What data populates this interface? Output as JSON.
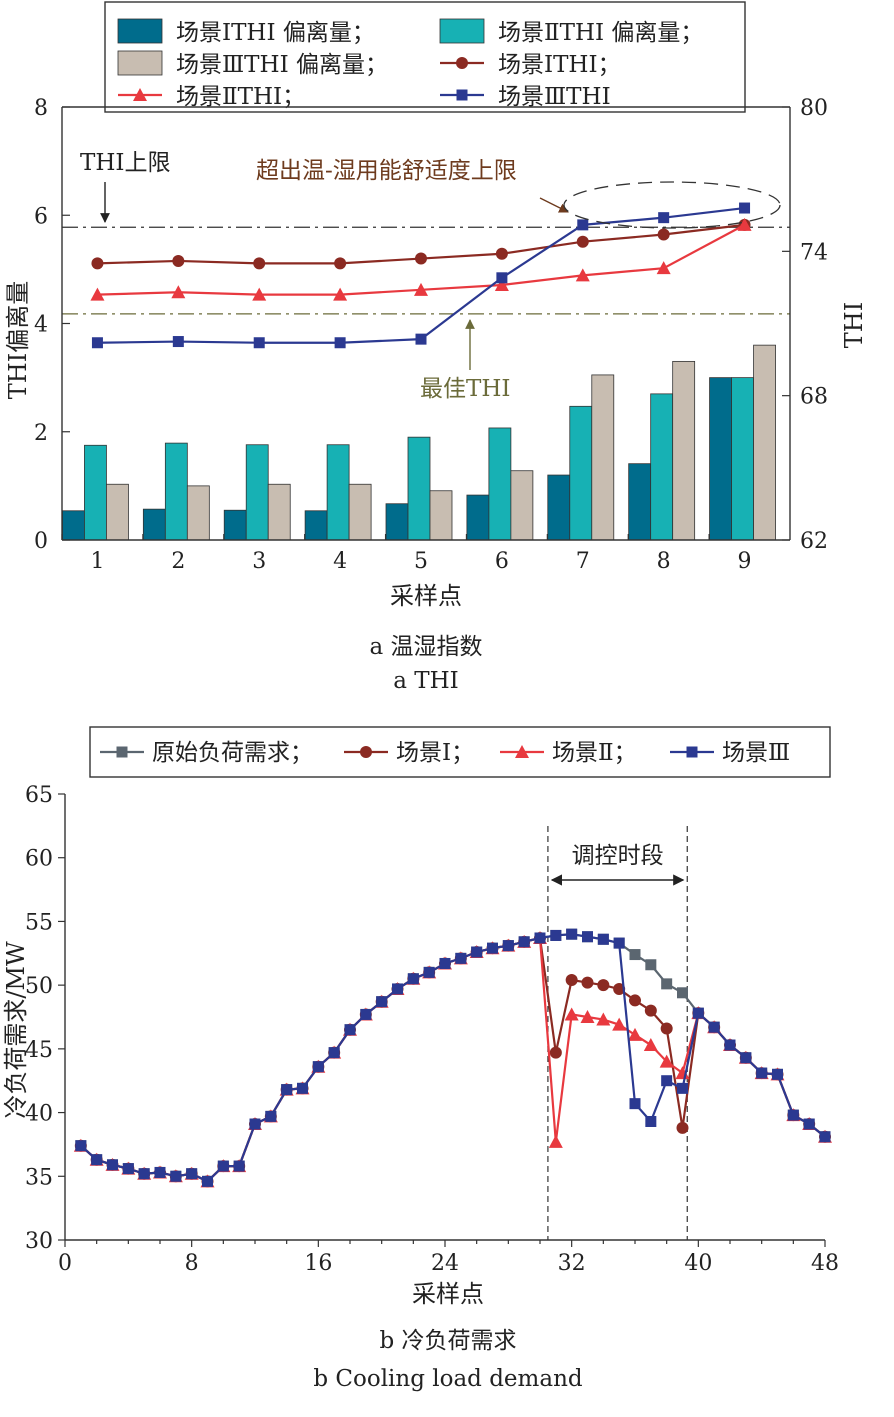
{
  "colors": {
    "scen1_dev": "#006c8c",
    "scen2_dev": "#17b1b4",
    "scen3_dev": "#c8bdb1",
    "scen1_line": "#8b2a22",
    "scen2_line": "#e8393f",
    "scen3_line": "#2b3991",
    "original_line": "#5b6670",
    "limit_line": "#333333",
    "best_line": "#6b6b3a",
    "best_label": "#6b6b3a",
    "exceed_label": "#6e3b1e"
  },
  "chart_data": [
    {
      "type": "bar+line",
      "categories": [
        "1",
        "2",
        "3",
        "4",
        "5",
        "6",
        "7",
        "8",
        "9"
      ],
      "ylabel": "THI偏离量",
      "y2label": "THI",
      "xlabel": "采样点",
      "ylim": [
        0,
        8
      ],
      "yticks": [
        "0",
        "2",
        "4",
        "6",
        "8"
      ],
      "y2lim": [
        62,
        80
      ],
      "y2ticks": [
        "62",
        "68",
        "74",
        "80"
      ],
      "legend": [
        {
          "label": "场景ⅠTHI 偏离量；",
          "kind": "bar",
          "color_key": "scen1_dev"
        },
        {
          "label": "场景ⅡTHI 偏离量；",
          "kind": "bar",
          "color_key": "scen2_dev"
        },
        {
          "label": "场景ⅢTHI 偏离量；",
          "kind": "bar",
          "color_key": "scen3_dev"
        },
        {
          "label": "场景ⅠTHI；",
          "kind": "line-circle",
          "color_key": "scen1_line"
        },
        {
          "label": "场景ⅡTHI；",
          "kind": "line-triangle",
          "color_key": "scen2_line"
        },
        {
          "label": "场景ⅢTHI",
          "kind": "line-square",
          "color_key": "scen3_line"
        }
      ],
      "bar_series": [
        {
          "name": "场景ⅠTHI 偏离量",
          "color_key": "scen1_dev",
          "values": [
            0.54,
            0.57,
            0.55,
            0.54,
            0.67,
            0.83,
            1.2,
            1.41,
            3.0
          ]
        },
        {
          "name": "场景ⅡTHI 偏离量",
          "color_key": "scen2_dev",
          "values": [
            1.75,
            1.79,
            1.76,
            1.76,
            1.9,
            2.07,
            2.47,
            2.7,
            3.0
          ]
        },
        {
          "name": "场景ⅢTHI 偏离量",
          "color_key": "scen3_dev",
          "values": [
            1.03,
            1.0,
            1.03,
            1.03,
            0.91,
            1.28,
            3.05,
            3.3,
            3.6
          ]
        }
      ],
      "line_series": [
        {
          "name": "场景ⅠTHI",
          "color_key": "scen1_line",
          "marker": "circle",
          "values": [
            73.5,
            73.6,
            73.5,
            73.5,
            73.7,
            73.9,
            74.4,
            74.7,
            75.1
          ]
        },
        {
          "name": "场景ⅡTHI",
          "color_key": "scen2_line",
          "marker": "triangle",
          "values": [
            72.2,
            72.3,
            72.2,
            72.2,
            72.4,
            72.6,
            73.0,
            73.3,
            75.1
          ]
        },
        {
          "name": "场景ⅢTHI",
          "color_key": "scen3_line",
          "marker": "square",
          "values": [
            70.2,
            70.25,
            70.2,
            70.2,
            70.35,
            72.9,
            75.1,
            75.4,
            75.8
          ]
        }
      ],
      "reference_lines": [
        {
          "label": "THI上限",
          "value": 75.0,
          "color_key": "limit_line"
        },
        {
          "label": "最佳THI",
          "value": 71.4,
          "color_key": "best_line"
        }
      ],
      "annotation": "超出温-湿用能舒适度上限",
      "caption_cn": "a  温湿指数",
      "caption_en": "a  THI"
    },
    {
      "type": "line",
      "x": [
        1,
        2,
        3,
        4,
        5,
        6,
        7,
        8,
        9,
        10,
        11,
        12,
        13,
        14,
        15,
        16,
        17,
        18,
        19,
        20,
        21,
        22,
        23,
        24,
        25,
        26,
        27,
        28,
        29,
        30,
        31,
        32,
        33,
        34,
        35,
        36,
        37,
        38,
        39,
        40,
        41,
        42,
        43,
        44,
        45,
        46,
        47,
        48
      ],
      "xlabel": "采样点",
      "ylabel": "冷负荷需求/MW",
      "xlim": [
        0,
        48
      ],
      "xticks": [
        "0",
        "8",
        "16",
        "24",
        "32",
        "40",
        "48"
      ],
      "ylim": [
        30,
        65
      ],
      "yticks": [
        "30",
        "35",
        "40",
        "45",
        "50",
        "55",
        "60",
        "65"
      ],
      "legend": [
        {
          "label": "原始负荷需求；",
          "kind": "line-square",
          "color_key": "original_line"
        },
        {
          "label": "场景Ⅰ；",
          "kind": "line-circle",
          "color_key": "scen1_line"
        },
        {
          "label": "场景Ⅱ；",
          "kind": "line-triangle",
          "color_key": "scen2_line"
        },
        {
          "label": "场景Ⅲ",
          "kind": "line-square",
          "color_key": "scen3_line"
        }
      ],
      "series": [
        {
          "name": "原始负荷需求",
          "color_key": "original_line",
          "marker": "square",
          "values": [
            37.4,
            36.3,
            35.9,
            35.6,
            35.2,
            35.3,
            35.0,
            35.2,
            34.6,
            35.8,
            35.8,
            39.1,
            39.7,
            41.8,
            41.9,
            43.6,
            44.7,
            46.5,
            47.7,
            48.7,
            49.7,
            50.5,
            51.0,
            51.7,
            52.1,
            52.6,
            52.9,
            53.1,
            53.4,
            53.7,
            53.9,
            54.0,
            53.8,
            53.6,
            53.3,
            52.4,
            51.6,
            50.1,
            49.4,
            47.8,
            46.7,
            45.3,
            44.3,
            43.1,
            43.0,
            39.8,
            39.1,
            38.1
          ]
        },
        {
          "name": "场景Ⅰ",
          "color_key": "scen1_line",
          "marker": "circle",
          "values": [
            37.4,
            36.3,
            35.9,
            35.6,
            35.2,
            35.3,
            35.0,
            35.2,
            34.6,
            35.8,
            35.8,
            39.1,
            39.7,
            41.8,
            41.9,
            43.6,
            44.7,
            46.5,
            47.7,
            48.7,
            49.7,
            50.5,
            51.0,
            51.7,
            52.1,
            52.6,
            52.9,
            53.1,
            53.4,
            53.7,
            44.7,
            50.4,
            50.2,
            50.0,
            49.7,
            48.8,
            48.0,
            46.6,
            38.8,
            47.8,
            46.7,
            45.3,
            44.3,
            43.1,
            43.0,
            39.8,
            39.1,
            38.1
          ]
        },
        {
          "name": "场景Ⅱ",
          "color_key": "scen2_line",
          "marker": "triangle",
          "values": [
            37.4,
            36.3,
            35.9,
            35.6,
            35.2,
            35.3,
            35.0,
            35.2,
            34.6,
            35.8,
            35.8,
            39.1,
            39.7,
            41.8,
            41.9,
            43.6,
            44.7,
            46.5,
            47.7,
            48.7,
            49.7,
            50.5,
            51.0,
            51.7,
            52.1,
            52.6,
            52.9,
            53.1,
            53.4,
            53.7,
            37.7,
            47.7,
            47.5,
            47.3,
            46.9,
            46.1,
            45.3,
            44.0,
            43.1,
            47.8,
            46.7,
            45.3,
            44.3,
            43.1,
            43.0,
            39.8,
            39.1,
            38.1
          ]
        },
        {
          "name": "场景Ⅲ",
          "color_key": "scen3_line",
          "marker": "square",
          "values": [
            37.4,
            36.3,
            35.9,
            35.6,
            35.2,
            35.3,
            35.0,
            35.2,
            34.6,
            35.8,
            35.8,
            39.1,
            39.7,
            41.8,
            41.9,
            43.6,
            44.7,
            46.5,
            47.7,
            48.7,
            49.7,
            50.5,
            51.0,
            51.7,
            52.1,
            52.6,
            52.9,
            53.1,
            53.4,
            53.7,
            53.9,
            54.0,
            53.8,
            53.6,
            53.3,
            40.7,
            39.3,
            42.5,
            41.9,
            47.8,
            46.7,
            45.3,
            44.3,
            43.1,
            43.0,
            39.8,
            39.1,
            38.1
          ]
        }
      ],
      "control_window": {
        "label": "调控时段",
        "x_start": 30.5,
        "x_end": 39.3
      },
      "caption_cn": "b  冷负荷需求",
      "caption_en": "b  Cooling load demand"
    }
  ]
}
